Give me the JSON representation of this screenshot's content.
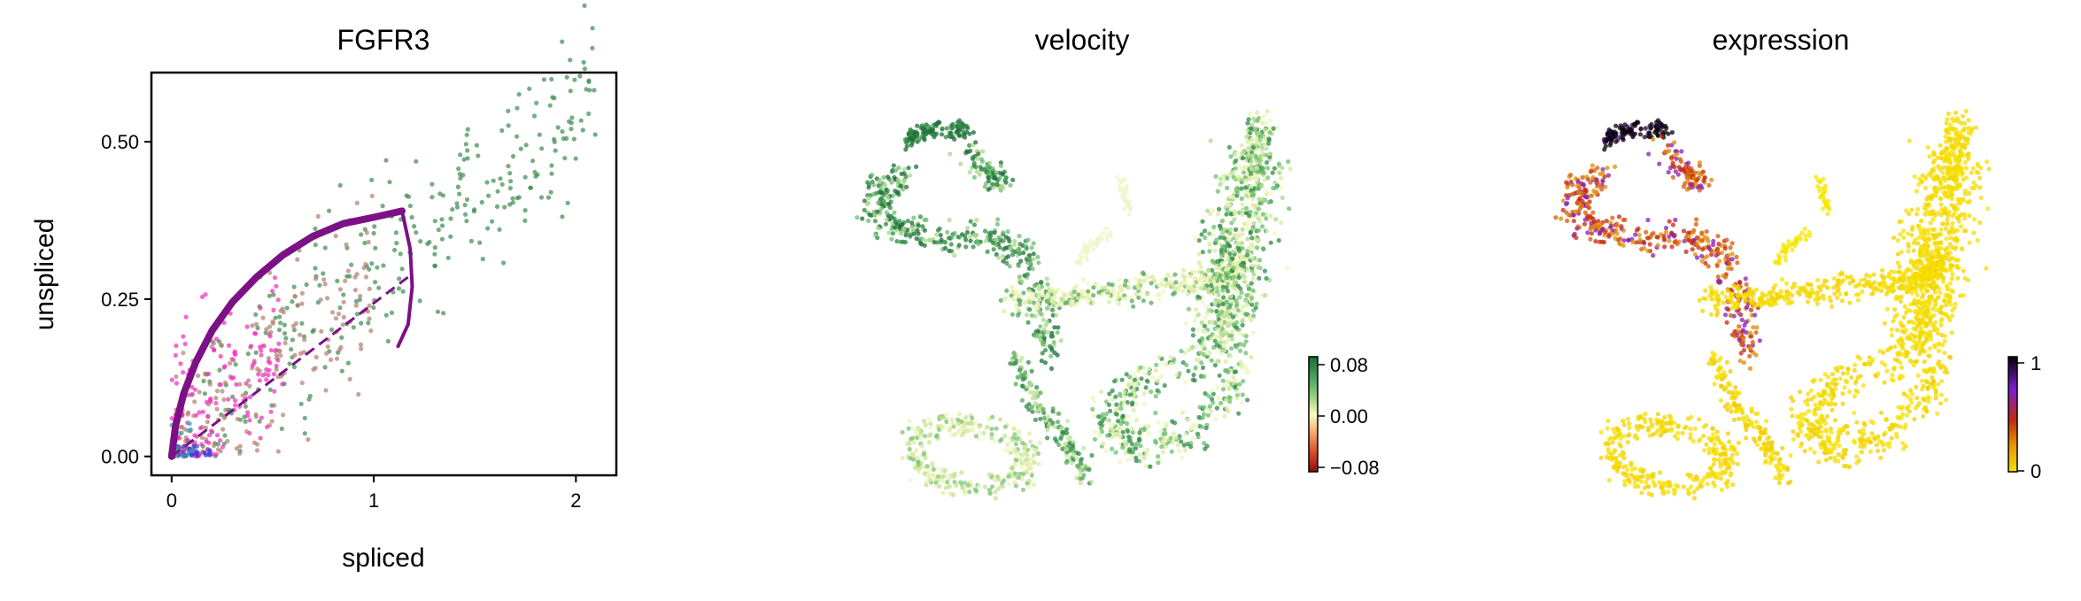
{
  "chart_data": [
    {
      "type": "scatter",
      "title": "FGFR3",
      "xlabel": "spliced",
      "ylabel": "unspliced",
      "xlim": [
        -0.1,
        2.2
      ],
      "ylim": [
        -0.03,
        0.61
      ],
      "x_ticks": [
        "0",
        "1",
        "2"
      ],
      "y_ticks": [
        "0.00",
        "0.25",
        "0.50"
      ],
      "x_tick_values": [
        0,
        1,
        2
      ],
      "y_tick_values": [
        0,
        0.25,
        0.5
      ],
      "colors": {
        "green": "#3d8a4e",
        "brown": "#b07e6e",
        "magenta": "#f02bbd",
        "blue": "#3a39d8",
        "teal": "#2aa8a8",
        "curve": "#7b1184"
      },
      "fit_curve": {
        "up": [
          [
            0,
            0
          ],
          [
            0.02,
            0.05
          ],
          [
            0.06,
            0.1
          ],
          [
            0.12,
            0.15
          ],
          [
            0.2,
            0.2
          ],
          [
            0.3,
            0.245
          ],
          [
            0.42,
            0.285
          ],
          [
            0.55,
            0.32
          ],
          [
            0.7,
            0.35
          ],
          [
            0.85,
            0.37
          ],
          [
            1.0,
            0.38
          ],
          [
            1.14,
            0.39
          ]
        ],
        "down": [
          [
            1.14,
            0.39
          ],
          [
            1.18,
            0.33
          ],
          [
            1.19,
            0.27
          ],
          [
            1.17,
            0.21
          ],
          [
            1.12,
            0.175
          ]
        ],
        "steady_state_line": [
          [
            0,
            0
          ],
          [
            1.19,
            0.29
          ]
        ]
      },
      "clusters": [
        {
          "name": "green",
          "n": 290,
          "x_range": [
            0.15,
            2.1
          ],
          "slope": 0.27,
          "spread": 0.07
        },
        {
          "name": "brown",
          "n": 200,
          "x_range": [
            0.02,
            1.0
          ],
          "slope": 0.3,
          "spread": 0.07
        },
        {
          "name": "magenta",
          "n": 140,
          "x_range": [
            0.0,
            0.55
          ],
          "slope": 0.35,
          "spread": 0.08
        },
        {
          "name": "blue",
          "n": 40,
          "x_range": [
            0.0,
            0.2
          ],
          "slope": 0.0,
          "spread": 0.008
        },
        {
          "name": "teal",
          "n": 15,
          "x_range": [
            0.0,
            0.1
          ],
          "slope": 0.3,
          "spread": 0.02
        }
      ]
    },
    {
      "type": "scatter",
      "title": "velocity",
      "colorbar": {
        "ticks": [
          "0.08",
          "0.00",
          "−0.08"
        ],
        "colors": [
          "#1a6b35",
          "#4ea862",
          "#b7df8d",
          "#fbfbc8",
          "#f4b16c",
          "#d9522e",
          "#8a1010"
        ]
      }
    },
    {
      "type": "scatter",
      "title": "expression",
      "colorbar": {
        "ticks": [
          "1",
          "0"
        ],
        "colors": [
          "#050005",
          "#7b1dd1",
          "#c4280e",
          "#e89a00",
          "#f5e000"
        ]
      }
    }
  ]
}
